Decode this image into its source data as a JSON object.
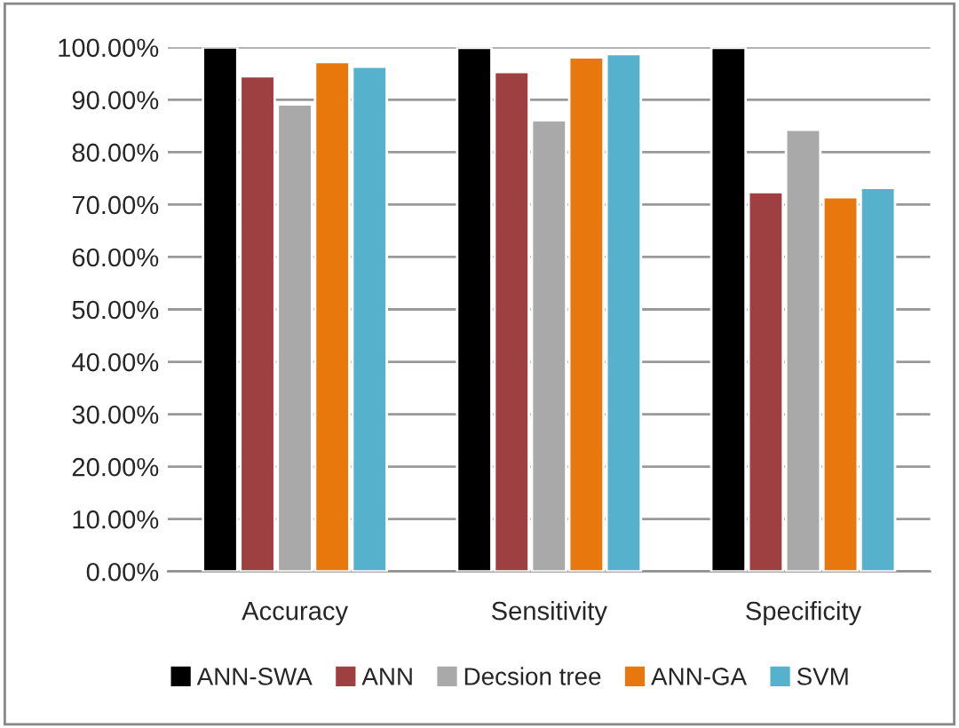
{
  "chart_data": {
    "type": "bar",
    "categories": [
      "Accuracy",
      "Sensitivity",
      "Specificity"
    ],
    "series": [
      {
        "name": "ANN-SWA",
        "color": "#000000",
        "values": [
          100,
          99.9,
          99.9
        ]
      },
      {
        "name": "ANN",
        "color": "#9e4041",
        "values": [
          94.5,
          95.3,
          72.4
        ]
      },
      {
        "name": "Decsion tree",
        "color": "#a9a9a9",
        "values": [
          89.1,
          86.1,
          84.3
        ]
      },
      {
        "name": "ANN-GA",
        "color": "#e8770e",
        "values": [
          97.2,
          98.1,
          71.4
        ]
      },
      {
        "name": "SVM",
        "color": "#56b2cc",
        "values": [
          96.3,
          98.7,
          73.2
        ]
      }
    ],
    "ylim": [
      0,
      100
    ],
    "yticks": [
      {
        "value": 0,
        "label": "0.00%"
      },
      {
        "value": 10,
        "label": "10.00%"
      },
      {
        "value": 20,
        "label": "20.00%"
      },
      {
        "value": 30,
        "label": "30.00%"
      },
      {
        "value": 40,
        "label": "40.00%"
      },
      {
        "value": 50,
        "label": "50.00%"
      },
      {
        "value": 60,
        "label": "60.00%"
      },
      {
        "value": 70,
        "label": "70.00%"
      },
      {
        "value": 80,
        "label": "80.00%"
      },
      {
        "value": 90,
        "label": "90.00%"
      },
      {
        "value": 100,
        "label": "100.00%"
      }
    ],
    "grid": "y",
    "legend": "bottom"
  }
}
